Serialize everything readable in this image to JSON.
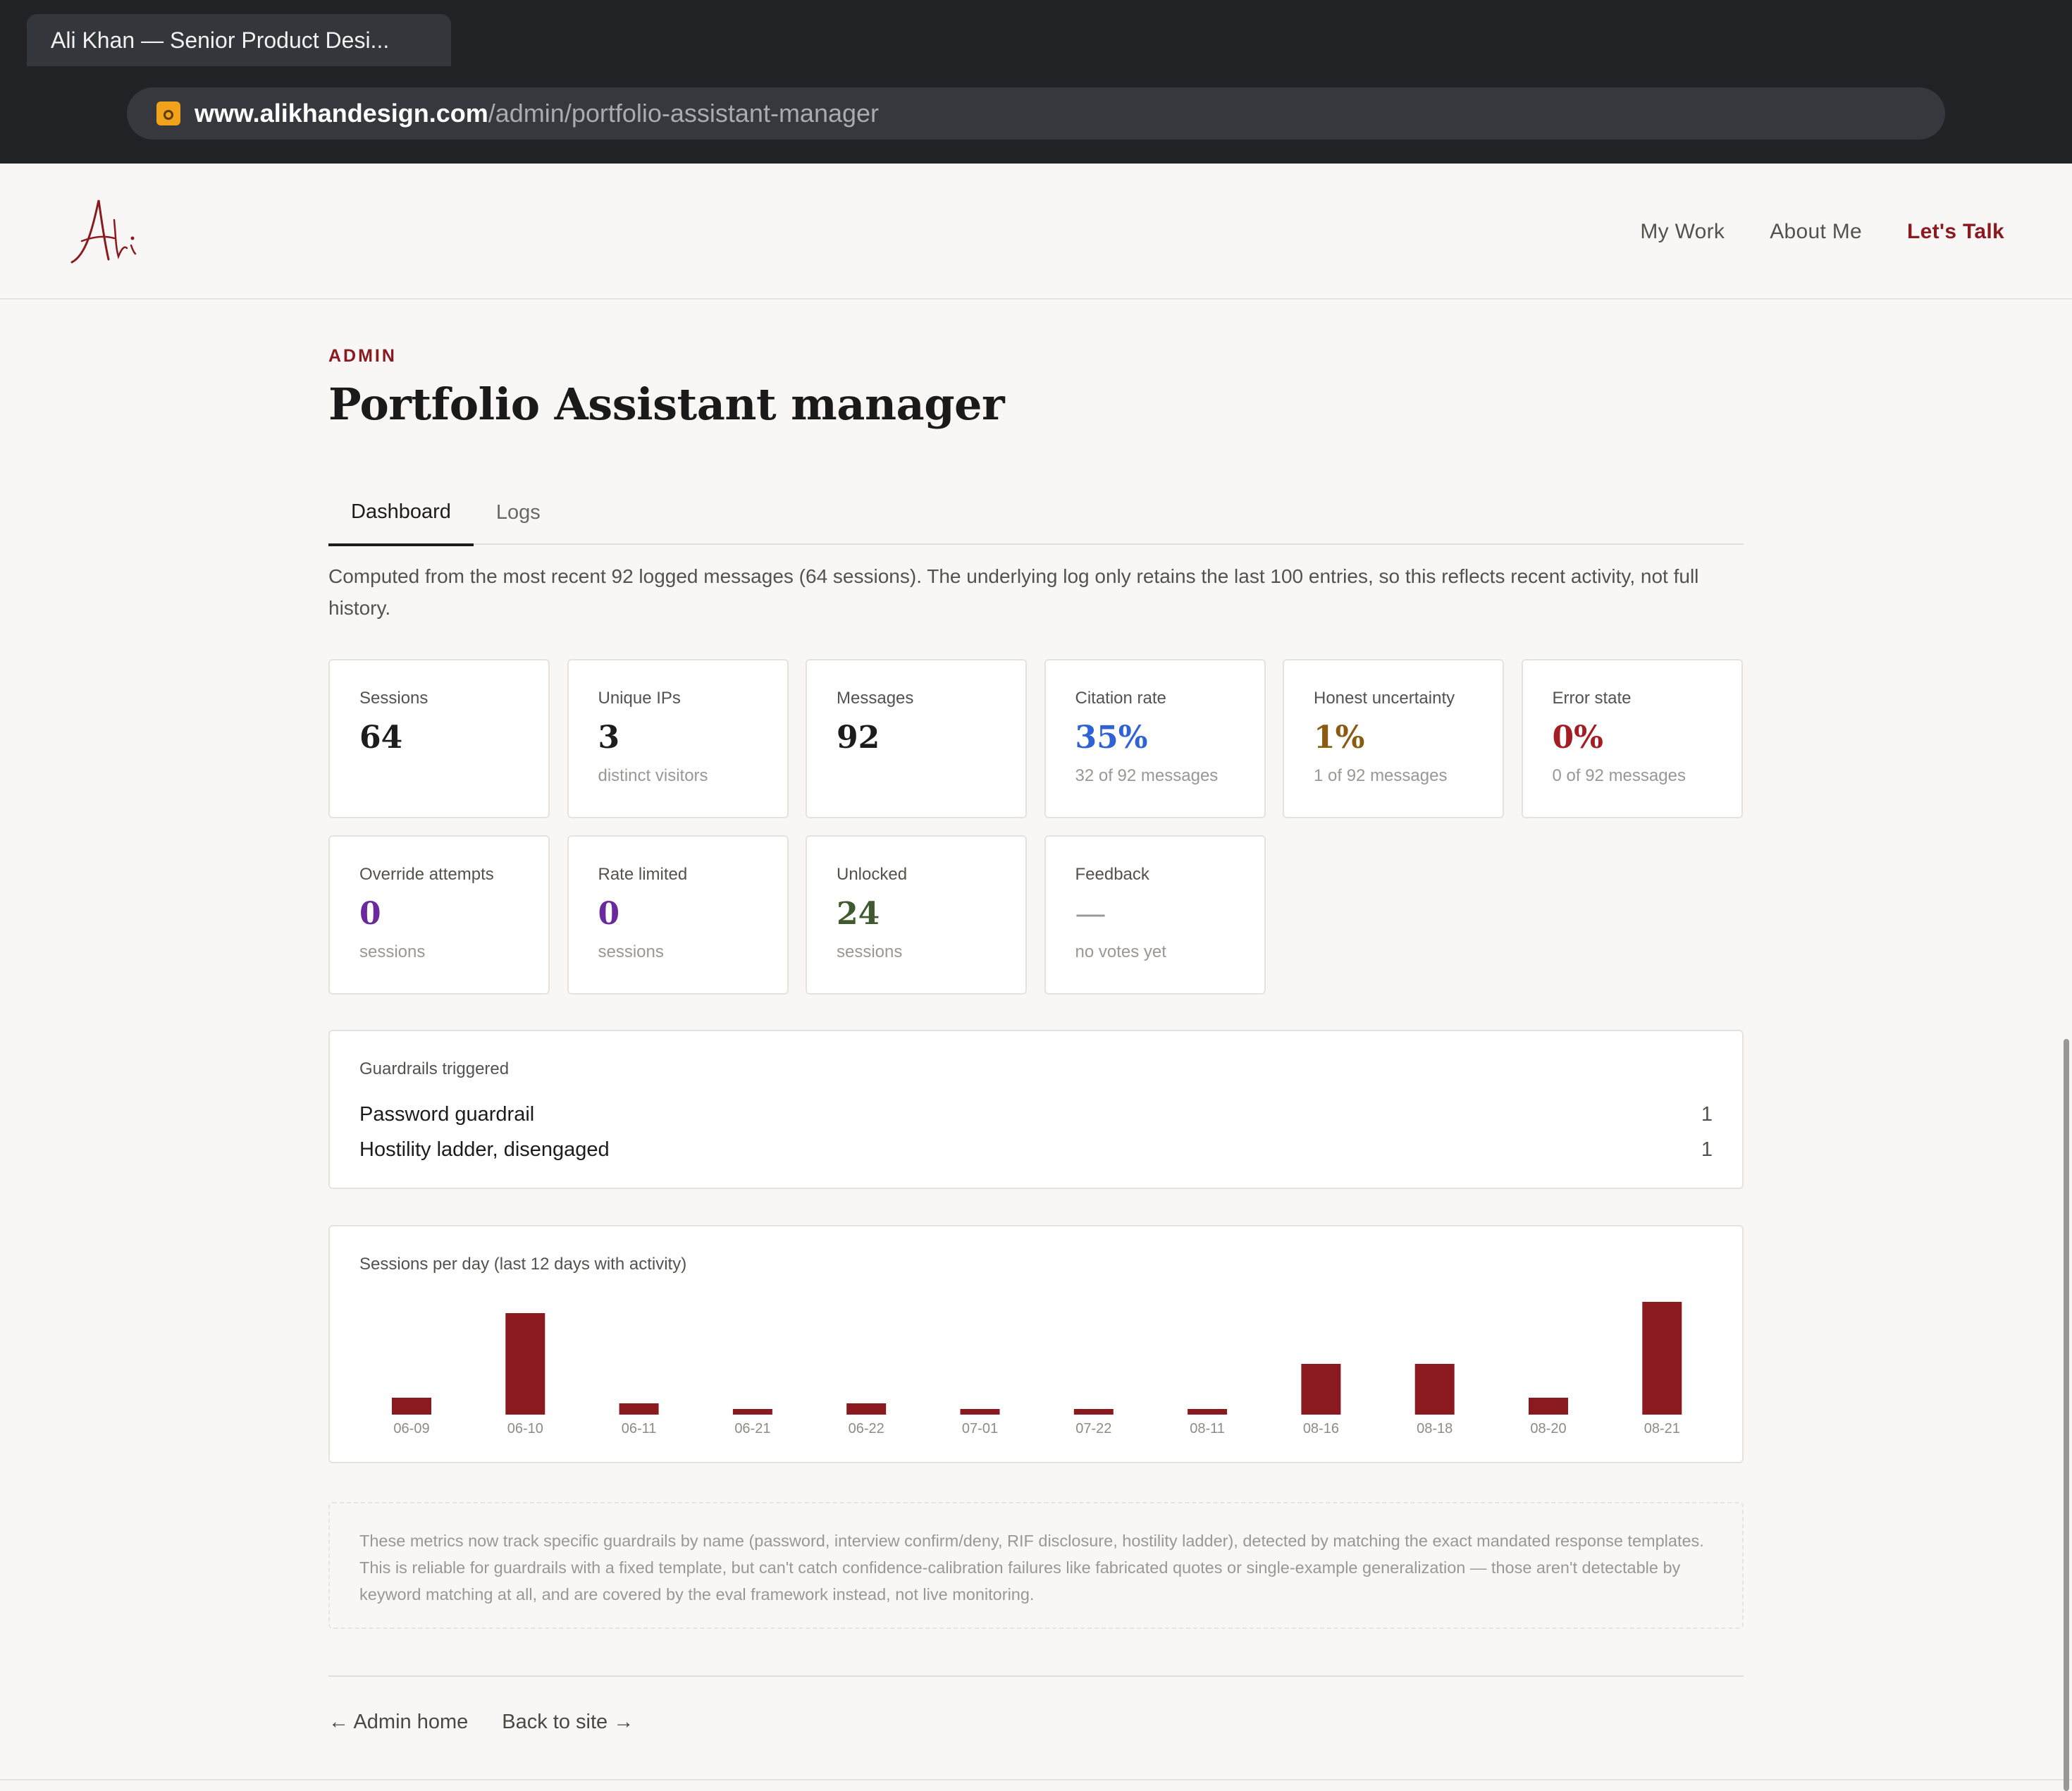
{
  "browser": {
    "tab_title": "Ali Khan — Senior Product Desi...",
    "url_domain": "www.alikhandesign.com",
    "url_path": "/admin/portfolio-assistant-manager"
  },
  "header": {
    "nav": [
      {
        "label": "My Work"
      },
      {
        "label": "About Me"
      },
      {
        "label": "Let's Talk"
      }
    ],
    "accent_color": "#8a1a20"
  },
  "page": {
    "eyebrow": "ADMIN",
    "title": "Portfolio Assistant manager",
    "tabs": [
      {
        "label": "Dashboard",
        "active": true
      },
      {
        "label": "Logs",
        "active": false
      }
    ],
    "intro": "Computed from the most recent 92 logged messages (64 sessions). The underlying log only retains the last 100 entries, so this reflects recent activity, not full history."
  },
  "metrics": [
    {
      "label": "Sessions",
      "value": "64",
      "sub": "",
      "color": "#1c1c1c"
    },
    {
      "label": "Unique IPs",
      "value": "3",
      "sub": "distinct visitors",
      "color": "#1c1c1c"
    },
    {
      "label": "Messages",
      "value": "92",
      "sub": "",
      "color": "#1c1c1c"
    },
    {
      "label": "Citation rate",
      "value": "35%",
      "sub": "32 of 92 messages",
      "color": "#2f62d4"
    },
    {
      "label": "Honest uncertainty",
      "value": "1%",
      "sub": "1 of 92 messages",
      "color": "#8a5a12"
    },
    {
      "label": "Error state",
      "value": "0%",
      "sub": "0 of 92 messages",
      "color": "#a51d24"
    },
    {
      "label": "Override attempts",
      "value": "0",
      "sub": "sessions",
      "color": "#6a2a9e"
    },
    {
      "label": "Rate limited",
      "value": "0",
      "sub": "sessions",
      "color": "#6a2a9e"
    },
    {
      "label": "Unlocked",
      "value": "24",
      "sub": "sessions",
      "color": "#3f5a2e"
    },
    {
      "label": "Feedback",
      "value": "—",
      "sub": "no votes yet",
      "color": "#9a9794"
    }
  ],
  "guardrails": {
    "title": "Guardrails triggered",
    "items": [
      {
        "name": "Password guardrail",
        "count": "1"
      },
      {
        "name": "Hostility ladder, disengaged",
        "count": "1"
      }
    ]
  },
  "chart_data": {
    "type": "bar",
    "title": "Sessions per day (last 12 days with activity)",
    "categories": [
      "06-09",
      "06-10",
      "06-11",
      "06-21",
      "06-22",
      "07-01",
      "07-22",
      "08-11",
      "08-16",
      "08-18",
      "08-20",
      "08-21"
    ],
    "values": [
      3,
      18,
      2,
      1,
      2,
      1,
      1,
      1,
      9,
      9,
      3,
      20
    ],
    "ylim": [
      0,
      20
    ],
    "grid": false,
    "bar_color": "#8a1a20"
  },
  "note": "These metrics now track specific guardrails by name (password, interview confirm/deny, RIF disclosure, hostility ladder), detected by matching the exact mandated response templates. This is reliable for guardrails with a fixed template, but can't catch confidence-calibration failures like fabricated quotes or single-example generalization — those aren't detectable by keyword matching at all, and are covered by the eval framework instead, not live monitoring.",
  "footer": {
    "admin_home": "← Admin home",
    "back_to_site": "Back to site →"
  }
}
